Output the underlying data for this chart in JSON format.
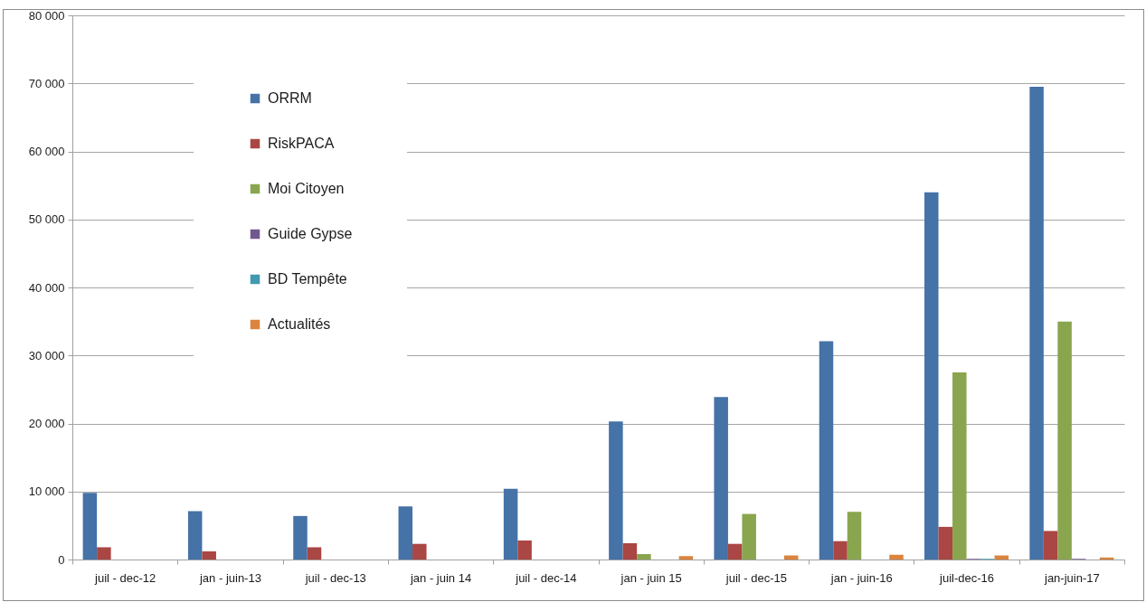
{
  "chart_data": {
    "type": "bar",
    "categories": [
      "juil - dec-12",
      "jan - juin-13",
      "juil - dec-13",
      "jan - juin 14",
      "juil - dec-14",
      "jan - juin 15",
      "juil - dec-15",
      "jan - juin-16",
      "juil-dec-16",
      "jan-juin-17"
    ],
    "series": [
      {
        "name": "ORRM",
        "color": "#4572a7",
        "values": [
          9800,
          7100,
          6400,
          7800,
          10400,
          20300,
          23900,
          32100,
          54000,
          69500
        ]
      },
      {
        "name": "RiskPACA",
        "color": "#aa4643",
        "values": [
          1800,
          1200,
          1800,
          2300,
          2800,
          2400,
          2300,
          2700,
          4800,
          4200
        ]
      },
      {
        "name": "Moi Citoyen",
        "color": "#89a54e",
        "values": [
          null,
          null,
          null,
          null,
          null,
          800,
          6700,
          7000,
          27500,
          35000
        ]
      },
      {
        "name": "Guide Gypse",
        "color": "#71588f",
        "values": [
          null,
          null,
          null,
          null,
          null,
          null,
          null,
          null,
          100,
          100
        ]
      },
      {
        "name": "BD Tempête",
        "color": "#4198af",
        "values": [
          null,
          null,
          null,
          null,
          null,
          null,
          null,
          null,
          100,
          null
        ]
      },
      {
        "name": "Actualités",
        "color": "#db843d",
        "values": [
          null,
          null,
          null,
          null,
          null,
          500,
          600,
          700,
          600,
          300
        ]
      }
    ],
    "ylim": [
      0,
      80000
    ],
    "yticks": [
      0,
      {
        "value": 10000,
        "label": "10 000"
      },
      {
        "value": 20000,
        "label": "20 000"
      },
      {
        "value": 30000,
        "label": "30 000"
      },
      {
        "value": 40000,
        "label": "40 000"
      },
      {
        "value": 50000,
        "label": "50 000"
      },
      {
        "value": 60000,
        "label": "60 000"
      },
      {
        "value": 70000,
        "label": "70 000"
      },
      {
        "value": 80000,
        "label": "80 000"
      }
    ],
    "grid": "y",
    "legend": "top left"
  }
}
